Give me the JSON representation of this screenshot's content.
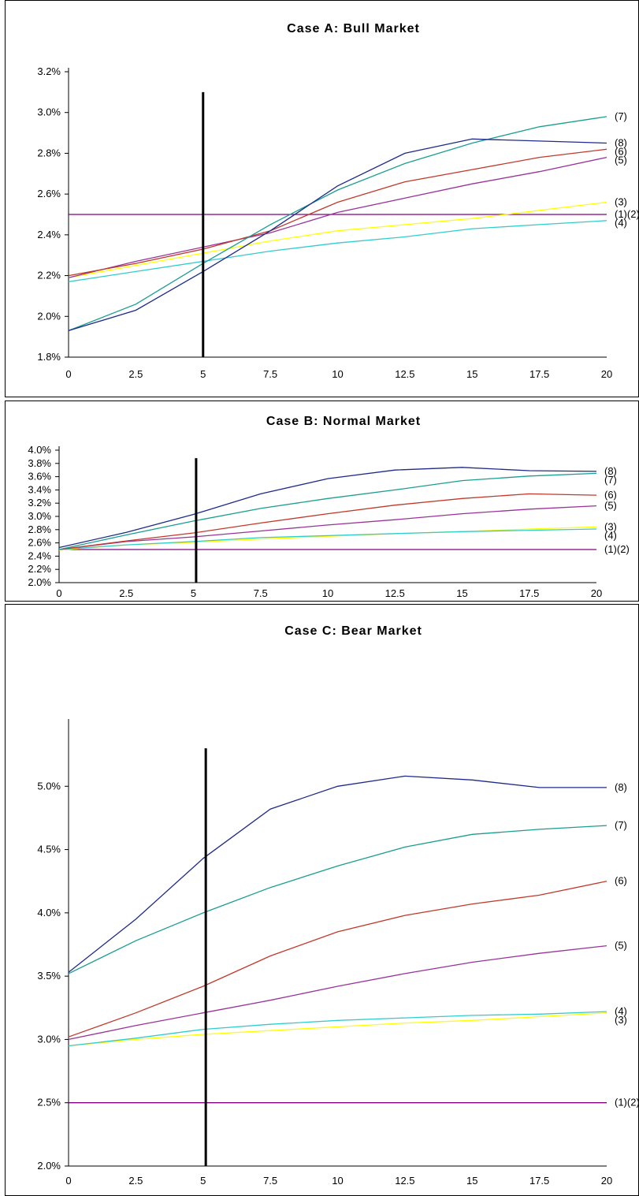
{
  "chart_data": [
    {
      "type": "line",
      "title": "Case A: Bull Market",
      "xlabel": "",
      "ylabel": "",
      "xlim": [
        0,
        20
      ],
      "ylim": [
        0.018,
        0.032
      ],
      "x_ticks": [
        "0",
        "2.5",
        "5",
        "7.5",
        "10",
        "12.5",
        "15",
        "17.5",
        "20"
      ],
      "y_ticks": [
        "1.8%",
        "2.0%",
        "2.2%",
        "2.4%",
        "2.6%",
        "2.8%",
        "3.0%",
        "3.2%"
      ],
      "grid": false,
      "vline": {
        "x": 5,
        "y_range": [
          0.018,
          0.031
        ]
      },
      "x": [
        0,
        2.5,
        5,
        7.5,
        10,
        12.5,
        15,
        17.5,
        20
      ],
      "series": [
        {
          "name": "(1)(2)",
          "color": "#800080",
          "values": [
            0.025,
            0.025,
            0.025,
            0.025,
            0.025,
            0.025,
            0.025,
            0.025,
            0.025
          ]
        },
        {
          "name": "(3)",
          "color": "#ffff00",
          "values": [
            0.0219,
            0.0225,
            0.0231,
            0.0237,
            0.0242,
            0.0245,
            0.0248,
            0.0252,
            0.0256
          ]
        },
        {
          "name": "(4)",
          "color": "#33cccc",
          "values": [
            0.0217,
            0.0222,
            0.0227,
            0.0232,
            0.0236,
            0.0239,
            0.0243,
            0.0245,
            0.0247
          ]
        },
        {
          "name": "(5)",
          "color": "#993399",
          "values": [
            0.0219,
            0.0227,
            0.0234,
            0.0241,
            0.0251,
            0.0258,
            0.0265,
            0.0271,
            0.0278
          ]
        },
        {
          "name": "(6)",
          "color": "#c0392b",
          "values": [
            0.022,
            0.0226,
            0.0233,
            0.0242,
            0.0256,
            0.0266,
            0.0272,
            0.0278,
            0.0282
          ]
        },
        {
          "name": "(7)",
          "color": "#1a9e8f",
          "values": [
            0.0193,
            0.0206,
            0.0226,
            0.0245,
            0.0262,
            0.0275,
            0.0285,
            0.0293,
            0.0298
          ]
        },
        {
          "name": "(8)",
          "color": "#1f2a8a",
          "values": [
            0.0193,
            0.0203,
            0.0222,
            0.0242,
            0.0264,
            0.028,
            0.0287,
            0.0286,
            0.0285
          ]
        }
      ]
    },
    {
      "type": "line",
      "title": "Case B: Normal Market",
      "xlabel": "",
      "ylabel": "",
      "xlim": [
        0,
        20
      ],
      "ylim": [
        0.02,
        0.04
      ],
      "x_ticks": [
        "0",
        "2.5",
        "5",
        "7.5",
        "10",
        "12.5",
        "15",
        "17.5",
        "20"
      ],
      "y_ticks": [
        "2.0%",
        "2.2%",
        "2.4%",
        "2.6%",
        "2.8%",
        "3.0%",
        "3.2%",
        "3.4%",
        "3.6%",
        "3.8%",
        "4.0%"
      ],
      "grid": false,
      "vline": {
        "x": 5.1,
        "y_range": [
          0.02,
          0.0388
        ]
      },
      "x": [
        0,
        2.5,
        5,
        7.5,
        10,
        12.5,
        15,
        17.5,
        20
      ],
      "series": [
        {
          "name": "(1)(2)",
          "color": "#800080",
          "values": [
            0.025,
            0.025,
            0.025,
            0.025,
            0.025,
            0.025,
            0.025,
            0.025,
            0.025
          ]
        },
        {
          "name": "(3)",
          "color": "#ffff00",
          "values": [
            0.0249,
            0.0257,
            0.0261,
            0.0266,
            0.027,
            0.0274,
            0.0277,
            0.0281,
            0.0284
          ]
        },
        {
          "name": "(4)",
          "color": "#33cccc",
          "values": [
            0.025,
            0.0257,
            0.0262,
            0.0268,
            0.0271,
            0.0274,
            0.0277,
            0.0279,
            0.0281
          ]
        },
        {
          "name": "(5)",
          "color": "#993399",
          "values": [
            0.025,
            0.0262,
            0.0269,
            0.0278,
            0.0287,
            0.0295,
            0.0304,
            0.0311,
            0.0316
          ]
        },
        {
          "name": "(6)",
          "color": "#c0392b",
          "values": [
            0.025,
            0.0263,
            0.0275,
            0.029,
            0.0304,
            0.0317,
            0.0327,
            0.0334,
            0.0332
          ]
        },
        {
          "name": "(7)",
          "color": "#1a9e8f",
          "values": [
            0.025,
            0.0272,
            0.0293,
            0.0312,
            0.0327,
            0.034,
            0.0354,
            0.0361,
            0.0365
          ]
        },
        {
          "name": "(8)",
          "color": "#1f2a8a",
          "values": [
            0.0253,
            0.0276,
            0.0303,
            0.0334,
            0.0357,
            0.037,
            0.0374,
            0.0369,
            0.0368
          ]
        }
      ]
    },
    {
      "type": "line",
      "title": "Case C: Bear Market",
      "xlabel": "",
      "ylabel": "",
      "xlim": [
        0,
        20
      ],
      "ylim": [
        0.02,
        0.055
      ],
      "x_ticks": [
        "0",
        "2.5",
        "5",
        "7.5",
        "10",
        "12.5",
        "15",
        "17.5",
        "20"
      ],
      "y_ticks": [
        "2.0%",
        "2.5%",
        "3.0%",
        "3.5%",
        "4.0%",
        "4.5%",
        "5.0%"
      ],
      "grid": false,
      "vline": {
        "x": 5.1,
        "y_range": [
          0.02,
          0.053
        ]
      },
      "x": [
        0,
        2.5,
        5,
        7.5,
        10,
        12.5,
        15,
        17.5,
        20
      ],
      "series": [
        {
          "name": "(1)(2)",
          "color": "#800080",
          "values": [
            0.025,
            0.025,
            0.025,
            0.025,
            0.025,
            0.025,
            0.025,
            0.025,
            0.025
          ]
        },
        {
          "name": "(3)",
          "color": "#ffff00",
          "values": [
            0.0295,
            0.03,
            0.0304,
            0.0307,
            0.031,
            0.0313,
            0.0315,
            0.0318,
            0.0321
          ]
        },
        {
          "name": "(4)",
          "color": "#33cccc",
          "values": [
            0.0295,
            0.0301,
            0.0308,
            0.0312,
            0.0315,
            0.0317,
            0.0319,
            0.032,
            0.0322
          ]
        },
        {
          "name": "(5)",
          "color": "#993399",
          "values": [
            0.03,
            0.0311,
            0.0321,
            0.0331,
            0.0342,
            0.0352,
            0.0361,
            0.0368,
            0.0374
          ]
        },
        {
          "name": "(6)",
          "color": "#c0392b",
          "values": [
            0.0302,
            0.0321,
            0.0342,
            0.0366,
            0.0385,
            0.0398,
            0.0407,
            0.0414,
            0.0425
          ]
        },
        {
          "name": "(7)",
          "color": "#1a9e8f",
          "values": [
            0.0352,
            0.0378,
            0.04,
            0.042,
            0.0437,
            0.0452,
            0.0462,
            0.0466,
            0.0469
          ]
        },
        {
          "name": "(8)",
          "color": "#1f2a8a",
          "values": [
            0.0353,
            0.0395,
            0.0443,
            0.0482,
            0.05,
            0.0508,
            0.0505,
            0.0499,
            0.0499
          ]
        }
      ]
    }
  ]
}
